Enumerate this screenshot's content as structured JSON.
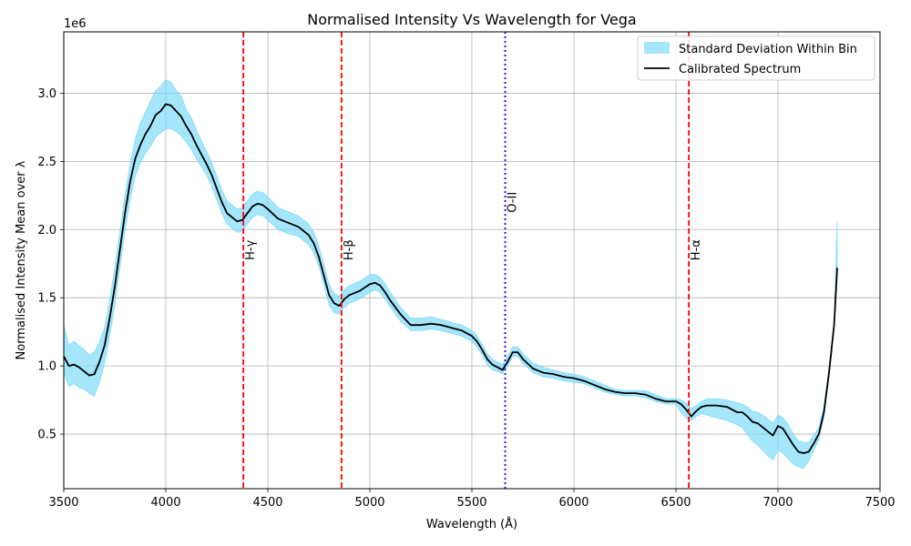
{
  "chart_data": {
    "type": "line",
    "title": "Normalised Intensity Vs Wavelength for Vega",
    "xlabel": "Wavelength (Å)",
    "ylabel": "Normalised Intensity Mean over λ",
    "y_offset_label": "1e6",
    "xlim": [
      3500,
      7500
    ],
    "ylim": [
      0.1,
      3.45
    ],
    "x_ticks": [
      3500,
      4000,
      4500,
      5000,
      5500,
      6000,
      6500,
      7000,
      7500
    ],
    "y_ticks": [
      0.5,
      1.0,
      1.5,
      2.0,
      2.5,
      3.0
    ],
    "x_tick_labels": [
      "3500",
      "4000",
      "4500",
      "5000",
      "5500",
      "6000",
      "6500",
      "7000",
      "7500"
    ],
    "y_tick_labels": [
      "0.5",
      "1.0",
      "1.5",
      "2.0",
      "2.5",
      "3.0"
    ],
    "grid": true,
    "legend_position": "top-right",
    "series": [
      {
        "name": "Calibrated Spectrum",
        "color": "#000000",
        "x": [
          3500,
          3525,
          3550,
          3575,
          3600,
          3625,
          3650,
          3675,
          3700,
          3725,
          3750,
          3775,
          3800,
          3825,
          3850,
          3875,
          3900,
          3925,
          3950,
          3975,
          4000,
          4025,
          4050,
          4075,
          4100,
          4125,
          4150,
          4175,
          4200,
          4225,
          4250,
          4275,
          4300,
          4325,
          4350,
          4375,
          4400,
          4425,
          4450,
          4475,
          4500,
          4550,
          4600,
          4650,
          4700,
          4725,
          4750,
          4775,
          4800,
          4825,
          4850,
          4875,
          4900,
          4950,
          5000,
          5025,
          5050,
          5075,
          5100,
          5150,
          5200,
          5250,
          5300,
          5350,
          5400,
          5450,
          5500,
          5525,
          5550,
          5575,
          5600,
          5625,
          5650,
          5675,
          5700,
          5725,
          5750,
          5800,
          5850,
          5900,
          5950,
          6000,
          6050,
          6100,
          6150,
          6200,
          6250,
          6300,
          6350,
          6400,
          6450,
          6500,
          6525,
          6550,
          6575,
          6600,
          6625,
          6650,
          6700,
          6750,
          6800,
          6825,
          6850,
          6875,
          6900,
          6925,
          6950,
          6975,
          7000,
          7025,
          7050,
          7075,
          7100,
          7125,
          7150,
          7175,
          7200,
          7225,
          7250,
          7275,
          7290
        ],
        "y": [
          1.07,
          1.0,
          1.01,
          0.99,
          0.96,
          0.93,
          0.94,
          1.03,
          1.15,
          1.35,
          1.58,
          1.85,
          2.12,
          2.35,
          2.52,
          2.62,
          2.7,
          2.76,
          2.84,
          2.87,
          2.92,
          2.91,
          2.87,
          2.83,
          2.76,
          2.7,
          2.62,
          2.55,
          2.48,
          2.4,
          2.3,
          2.2,
          2.12,
          2.09,
          2.06,
          2.07,
          2.12,
          2.17,
          2.19,
          2.18,
          2.15,
          2.08,
          2.05,
          2.02,
          1.96,
          1.9,
          1.8,
          1.66,
          1.52,
          1.46,
          1.44,
          1.49,
          1.52,
          1.55,
          1.6,
          1.61,
          1.59,
          1.54,
          1.48,
          1.38,
          1.3,
          1.3,
          1.31,
          1.3,
          1.28,
          1.26,
          1.22,
          1.18,
          1.12,
          1.05,
          1.01,
          0.99,
          0.97,
          1.03,
          1.1,
          1.1,
          1.05,
          0.98,
          0.95,
          0.94,
          0.92,
          0.91,
          0.89,
          0.86,
          0.83,
          0.81,
          0.8,
          0.8,
          0.79,
          0.76,
          0.74,
          0.74,
          0.72,
          0.68,
          0.63,
          0.67,
          0.7,
          0.71,
          0.71,
          0.7,
          0.66,
          0.66,
          0.63,
          0.59,
          0.58,
          0.55,
          0.52,
          0.49,
          0.56,
          0.54,
          0.48,
          0.42,
          0.37,
          0.36,
          0.37,
          0.43,
          0.5,
          0.66,
          0.95,
          1.3,
          1.72
        ]
      }
    ],
    "band": {
      "name": "Standard Deviation Within Bin",
      "color": "#7fdcfa",
      "x": [
        3500,
        3525,
        3550,
        3575,
        3600,
        3625,
        3650,
        3675,
        3700,
        3725,
        3750,
        3775,
        3800,
        3825,
        3850,
        3875,
        3900,
        3925,
        3950,
        3975,
        4000,
        4025,
        4050,
        4075,
        4100,
        4125,
        4150,
        4175,
        4200,
        4225,
        4250,
        4275,
        4300,
        4325,
        4350,
        4375,
        4400,
        4425,
        4450,
        4475,
        4500,
        4550,
        4600,
        4650,
        4700,
        4725,
        4750,
        4775,
        4800,
        4825,
        4850,
        4875,
        4900,
        4950,
        5000,
        5025,
        5050,
        5075,
        5100,
        5150,
        5200,
        5250,
        5300,
        5350,
        5400,
        5450,
        5500,
        5525,
        5550,
        5575,
        5600,
        5625,
        5650,
        5675,
        5700,
        5725,
        5750,
        5800,
        5850,
        5900,
        5950,
        6000,
        6050,
        6100,
        6150,
        6200,
        6250,
        6300,
        6350,
        6400,
        6450,
        6500,
        6525,
        6550,
        6575,
        6600,
        6625,
        6650,
        6700,
        6750,
        6800,
        6825,
        6850,
        6875,
        6900,
        6925,
        6950,
        6975,
        7000,
        7025,
        7050,
        7075,
        7100,
        7125,
        7150,
        7175,
        7200,
        7225,
        7250,
        7275,
        7290
      ],
      "lower": [
        0.95,
        0.85,
        0.87,
        0.84,
        0.83,
        0.8,
        0.78,
        0.88,
        1.02,
        1.22,
        1.45,
        1.72,
        1.99,
        2.22,
        2.39,
        2.49,
        2.56,
        2.61,
        2.68,
        2.71,
        2.74,
        2.74,
        2.72,
        2.69,
        2.64,
        2.59,
        2.52,
        2.46,
        2.4,
        2.32,
        2.22,
        2.12,
        2.04,
        2.01,
        1.98,
        1.99,
        2.04,
        2.09,
        2.11,
        2.1,
        2.07,
        2.0,
        1.97,
        1.95,
        1.89,
        1.83,
        1.73,
        1.59,
        1.45,
        1.39,
        1.38,
        1.43,
        1.46,
        1.49,
        1.54,
        1.56,
        1.54,
        1.49,
        1.43,
        1.33,
        1.26,
        1.26,
        1.27,
        1.26,
        1.24,
        1.22,
        1.18,
        1.14,
        1.08,
        1.01,
        0.97,
        0.96,
        0.94,
        1.0,
        1.07,
        1.07,
        1.02,
        0.95,
        0.92,
        0.91,
        0.89,
        0.88,
        0.87,
        0.84,
        0.81,
        0.79,
        0.78,
        0.78,
        0.77,
        0.74,
        0.72,
        0.72,
        0.66,
        0.62,
        0.6,
        0.63,
        0.65,
        0.64,
        0.62,
        0.6,
        0.57,
        0.55,
        0.5,
        0.45,
        0.42,
        0.38,
        0.34,
        0.31,
        0.38,
        0.36,
        0.32,
        0.28,
        0.26,
        0.25,
        0.3,
        0.38,
        0.46,
        0.62,
        0.92,
        1.28,
        1.7
      ],
      "upper": [
        1.3,
        1.15,
        1.18,
        1.15,
        1.12,
        1.08,
        1.1,
        1.18,
        1.28,
        1.48,
        1.72,
        1.98,
        2.25,
        2.48,
        2.66,
        2.78,
        2.86,
        2.94,
        3.02,
        3.05,
        3.1,
        3.08,
        3.02,
        2.98,
        2.88,
        2.82,
        2.73,
        2.65,
        2.57,
        2.49,
        2.39,
        2.29,
        2.21,
        2.18,
        2.15,
        2.16,
        2.21,
        2.26,
        2.28,
        2.27,
        2.24,
        2.16,
        2.13,
        2.1,
        2.04,
        1.98,
        1.88,
        1.74,
        1.6,
        1.53,
        1.51,
        1.56,
        1.59,
        1.62,
        1.67,
        1.67,
        1.65,
        1.6,
        1.54,
        1.43,
        1.35,
        1.35,
        1.36,
        1.34,
        1.32,
        1.3,
        1.26,
        1.22,
        1.16,
        1.09,
        1.05,
        1.03,
        1.01,
        1.07,
        1.14,
        1.14,
        1.09,
        1.02,
        0.99,
        0.97,
        0.95,
        0.94,
        0.92,
        0.89,
        0.86,
        0.83,
        0.82,
        0.82,
        0.82,
        0.79,
        0.76,
        0.76,
        0.75,
        0.73,
        0.69,
        0.71,
        0.74,
        0.76,
        0.76,
        0.75,
        0.73,
        0.72,
        0.7,
        0.67,
        0.66,
        0.64,
        0.61,
        0.58,
        0.64,
        0.62,
        0.57,
        0.5,
        0.45,
        0.44,
        0.44,
        0.49,
        0.55,
        0.7,
        0.98,
        1.32,
        2.06
      ]
    },
    "vlines": [
      {
        "x": 4380,
        "label": "H-γ",
        "color": "#ff0000",
        "style": "dashed",
        "label_y": 1.85
      },
      {
        "x": 4861,
        "label": "H-β",
        "color": "#ff0000",
        "style": "dashed",
        "label_y": 1.85
      },
      {
        "x": 5663,
        "label": "O-II",
        "color": "#0000ff",
        "style": "dotted",
        "label_y": 2.2
      },
      {
        "x": 6563,
        "label": "H-α",
        "color": "#ff0000",
        "style": "dashed",
        "label_y": 1.85
      }
    ]
  }
}
